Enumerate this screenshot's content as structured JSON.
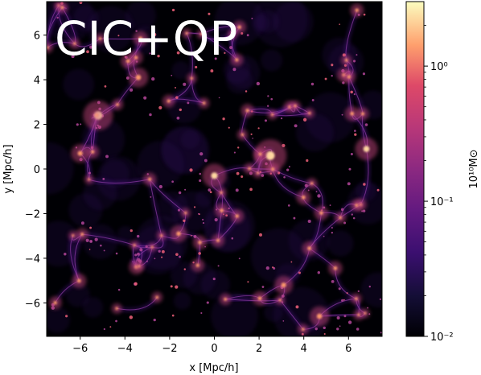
{
  "chart_data": {
    "type": "heatmap",
    "overlay_label": "CIC+QP",
    "xlabel": "x [Mpc/h]",
    "ylabel": "y [Mpc/h]",
    "xlim": [
      -7.5,
      7.5
    ],
    "ylim": [
      -7.5,
      7.5
    ],
    "x_ticks": [
      -6,
      -4,
      -2,
      0,
      2,
      4,
      6
    ],
    "x_tick_labels": [
      "−6",
      "−4",
      "−2",
      "0",
      "2",
      "4",
      "6"
    ],
    "y_ticks": [
      -6,
      -4,
      -2,
      0,
      2,
      4,
      6
    ],
    "y_tick_labels": [
      "−6",
      "−4",
      "−2",
      "0",
      "2",
      "4",
      "6"
    ],
    "colorbar": {
      "label": "10¹⁰M⊙",
      "scale": "log",
      "range": [
        0.01,
        3.0
      ],
      "colormap": "magma",
      "ticks": [
        0.01,
        0.1,
        1.0
      ],
      "tick_labels": [
        "10⁻²",
        "10⁻¹",
        "10⁰"
      ]
    },
    "bright_regions": [
      {
        "x": -5.2,
        "y": 2.4,
        "v": 1.6
      },
      {
        "x": -3.4,
        "y": 4.1,
        "v": 0.9
      },
      {
        "x": 0.0,
        "y": -0.3,
        "v": 1.2
      },
      {
        "x": 2.5,
        "y": 0.6,
        "v": 1.8
      },
      {
        "x": 6.8,
        "y": 0.9,
        "v": 1.1
      },
      {
        "x": 3.1,
        "y": -5.2,
        "v": 0.8
      },
      {
        "x": -1.6,
        "y": -2.9,
        "v": 0.7
      },
      {
        "x": -6.0,
        "y": 0.7,
        "v": 0.8
      },
      {
        "x": 4.7,
        "y": -6.6,
        "v": 0.9
      }
    ]
  },
  "colors": {
    "background": "#000004",
    "filament": "#5b1a8f",
    "node": "#fd9a6a"
  }
}
